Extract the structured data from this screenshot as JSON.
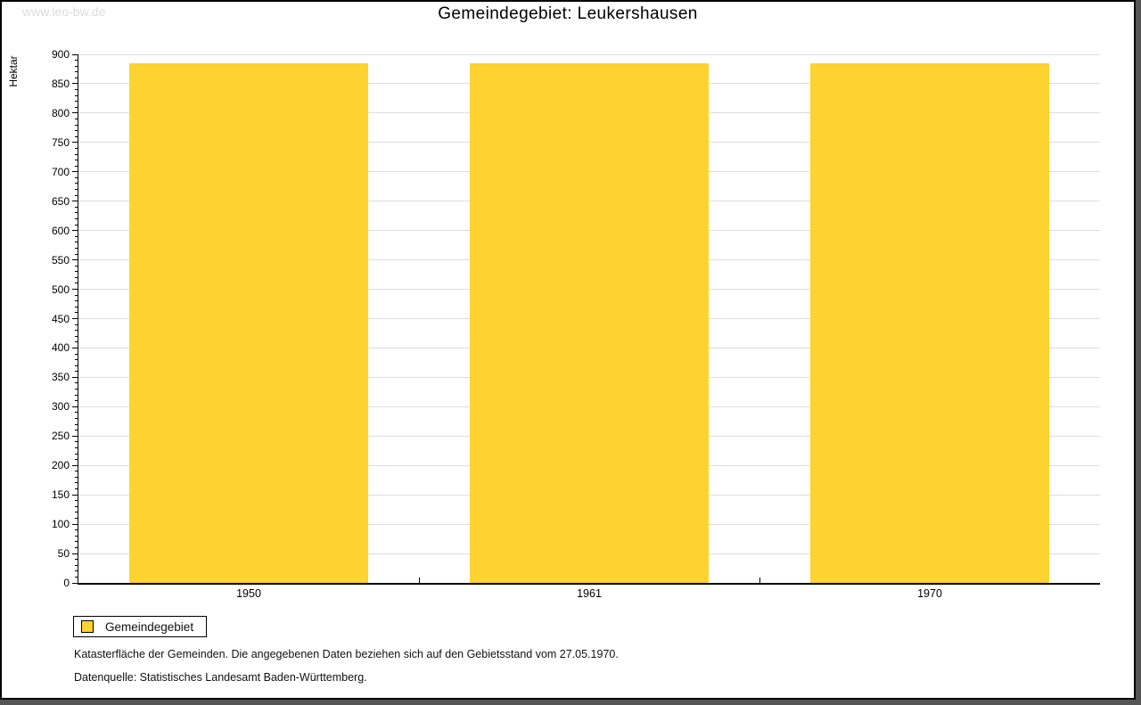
{
  "watermark": "www.leo-bw.de",
  "title": "Gemeindegebiet: Leukershausen",
  "colors": {
    "bar": "#fcd32f",
    "grid": "#dddddd",
    "axis": "#000000",
    "watermark": "#dcdcdc",
    "frame_shadow": "#555555"
  },
  "chart_data": {
    "type": "bar",
    "title": "Gemeindegebiet: Leukershausen",
    "categories": [
      "1950",
      "1961",
      "1970"
    ],
    "series": [
      {
        "name": "Gemeindegebiet",
        "values": [
          885,
          885,
          885
        ]
      }
    ],
    "xlabel": "",
    "ylabel": "Hektar",
    "ylim": [
      0,
      900
    ],
    "ytick_step": 50,
    "minor_tick_step": 10,
    "grid": true,
    "legend_position": "bottom-left"
  },
  "legend": {
    "label": "Gemeindegebiet"
  },
  "footer": {
    "line1": "Katasterfläche der Gemeinden. Die angegebenen Daten beziehen sich auf den Gebietsstand vom 27.05.1970.",
    "line2": "Datenquelle: Statistisches Landesamt Baden-Württemberg."
  }
}
